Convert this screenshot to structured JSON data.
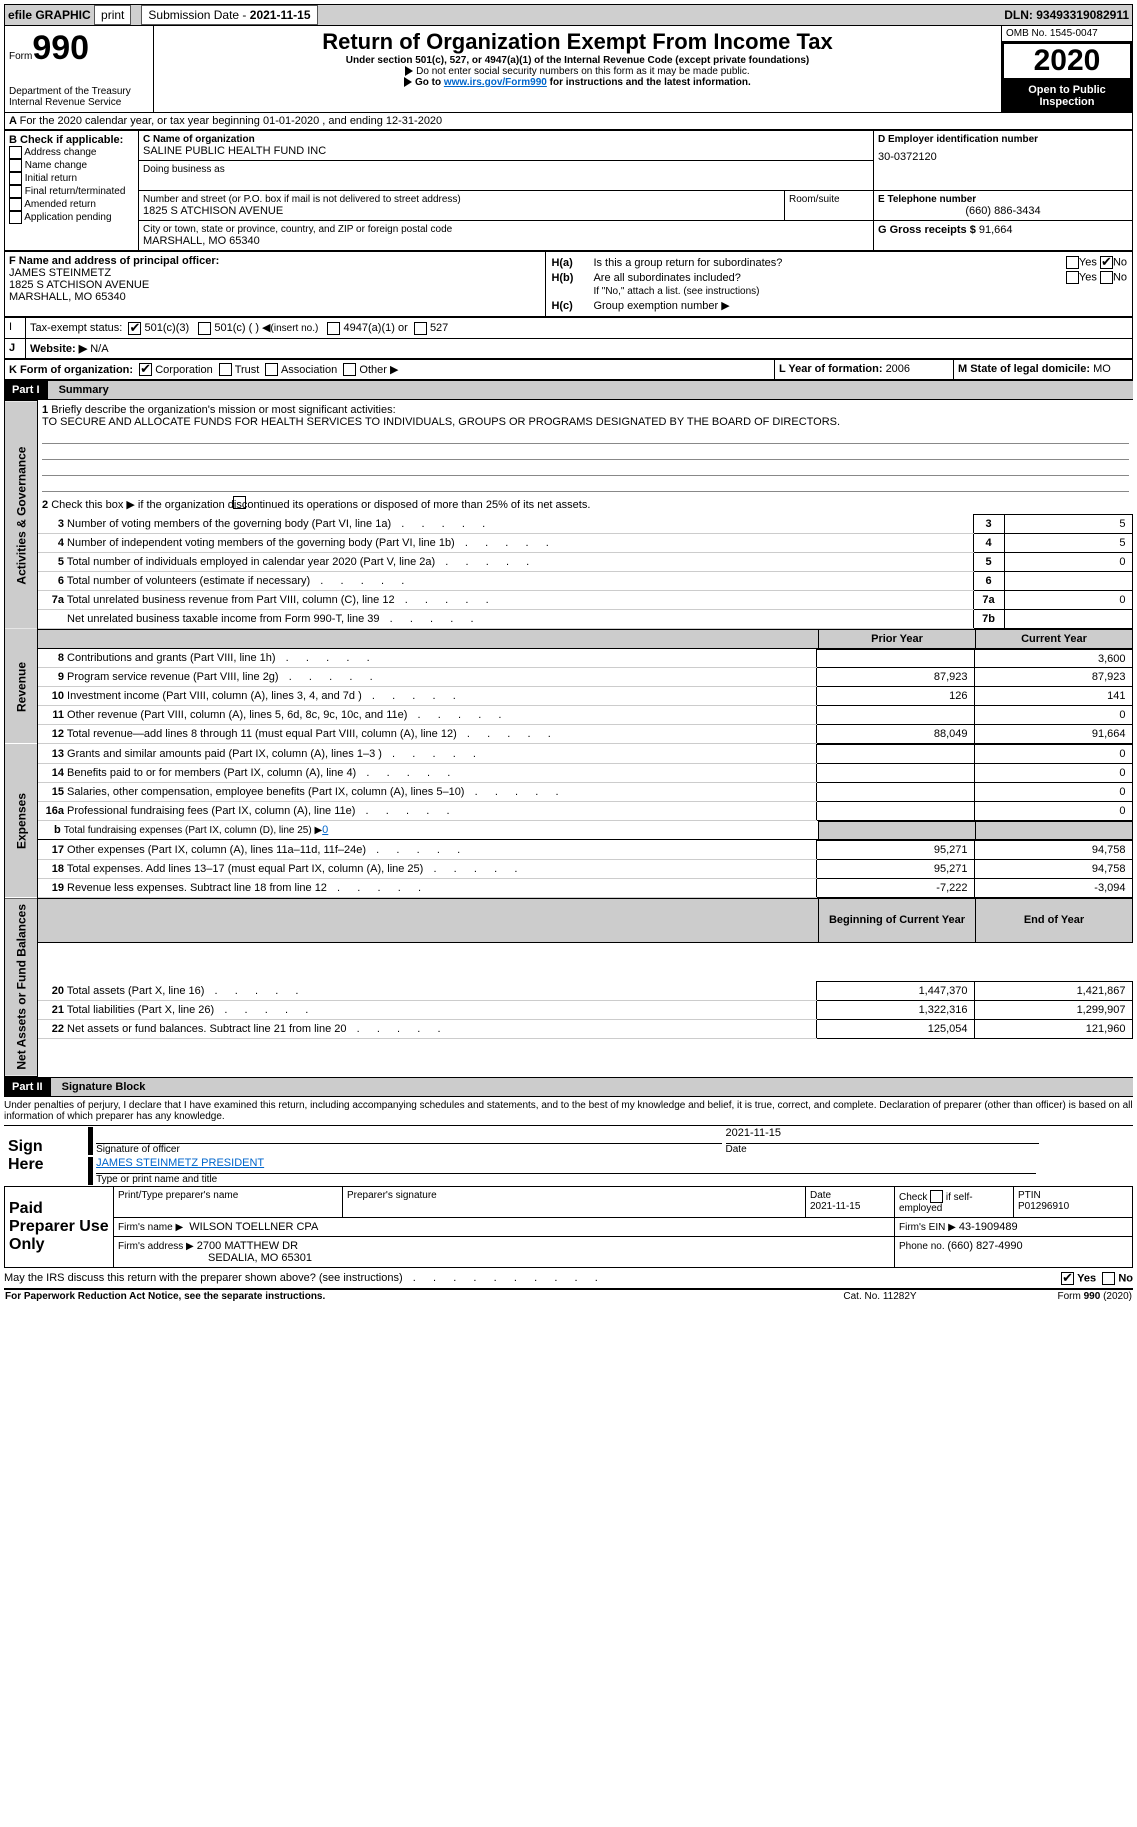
{
  "topbar": {
    "efile": "efile GRAPHIC",
    "print": "print",
    "sub_label": "Submission Date - ",
    "sub_date": "2021-11-15",
    "dln": "DLN: 93493319082911"
  },
  "header": {
    "form_prefix": "Form",
    "form_no": "990",
    "title": "Return of Organization Exempt From Income Tax",
    "subtitle": "Under section 501(c), 527, or 4947(a)(1) of the Internal Revenue Code (except private foundations)",
    "note1": "Do not enter social security numbers on this form as it may be made public.",
    "note2_a": "Go to ",
    "note2_link": "www.irs.gov/Form990",
    "note2_b": " for instructions and the latest information.",
    "dept": "Department of the Treasury\nInternal Revenue Service",
    "omb": "OMB No. 1545-0047",
    "year": "2020",
    "open": "Open to Public Inspection"
  },
  "sectionA": {
    "a_line": "For the 2020 calendar year, or tax year beginning 01-01-2020   , and ending 12-31-2020",
    "b_label": "B Check if applicable:",
    "b_opts": [
      "Address change",
      "Name change",
      "Initial return",
      "Final return/terminated",
      "Amended return",
      "Application pending"
    ],
    "c_label": "C Name of organization",
    "org_name": "SALINE PUBLIC HEALTH FUND INC",
    "dba_label": "Doing business as",
    "addr_label": "Number and street (or P.O. box if mail is not delivered to street address)",
    "room_label": "Room/suite",
    "addr": "1825 S ATCHISON AVENUE",
    "city_label": "City or town, state or province, country, and ZIP or foreign postal code",
    "city": "MARSHALL, MO  65340",
    "d_label": "D Employer identification number",
    "ein": "30-0372120",
    "e_label": "E Telephone number",
    "phone": "(660) 886-3434",
    "g_label": "G Gross receipts $ ",
    "gross": "91,664",
    "f_label": "F  Name and address of principal officer:",
    "officer_name": "JAMES STEINMETZ",
    "officer_addr1": "1825 S ATCHISON AVENUE",
    "officer_addr2": "MARSHALL, MO  65340",
    "ha": "Is this a group return for subordinates?",
    "hb": "Are all subordinates included?",
    "hb_note": "If \"No,\" attach a list. (see instructions)",
    "hc": "Group exemption number ▶",
    "ha_label": "H(a)",
    "hb_label": "H(b)",
    "hc_label": "H(c)",
    "yes": "Yes",
    "no": "No",
    "tax_status_label": "Tax-exempt status:",
    "s1": "501(c)(3)",
    "s2": "501(c) (  )",
    "s2_note": "(insert no.)",
    "s3": "4947(a)(1) or",
    "s4": "527",
    "website_label": "Website: ▶",
    "website": "N/A",
    "k_label": "K Form of organization:",
    "k1": "Corporation",
    "k2": "Trust",
    "k3": "Association",
    "k4": "Other ▶",
    "l_label": "L Year of formation: ",
    "l_val": "2006",
    "m_label": "M State of legal domicile: ",
    "m_val": "MO",
    "i_label": "I",
    "j_label": "J"
  },
  "part1": {
    "label": "Part I",
    "title": "Summary",
    "g_label": "Activities & Governance",
    "r_label": "Revenue",
    "e_label": "Expenses",
    "n_label": "Net Assets or Fund Balances",
    "q1": "Briefly describe the organization's mission or most significant activities:",
    "mission": "TO SECURE AND ALLOCATE FUNDS FOR HEALTH SERVICES TO INDIVIDUALS, GROUPS OR PROGRAMS DESIGNATED BY THE BOARD OF DIRECTORS.",
    "q2": "Check this box ▶        if the organization discontinued its operations or disposed of more than 25% of its net assets.",
    "rows_gov": [
      {
        "n": "3",
        "t": "Number of voting members of the governing body (Part VI, line 1a)",
        "r": "3",
        "v": "5"
      },
      {
        "n": "4",
        "t": "Number of independent voting members of the governing body (Part VI, line 1b)",
        "r": "4",
        "v": "5"
      },
      {
        "n": "5",
        "t": "Total number of individuals employed in calendar year 2020 (Part V, line 2a)",
        "r": "5",
        "v": "0"
      },
      {
        "n": "6",
        "t": "Total number of volunteers (estimate if necessary)",
        "r": "6",
        "v": ""
      },
      {
        "n": "7a",
        "t": "Total unrelated business revenue from Part VIII, column (C), line 12",
        "r": "7a",
        "v": "0"
      },
      {
        "n": "",
        "t": "Net unrelated business taxable income from Form 990-T, line 39",
        "r": "7b",
        "v": ""
      }
    ],
    "hdr_prior": "Prior Year",
    "hdr_curr": "Current Year",
    "rows_rev": [
      {
        "n": "8",
        "t": "Contributions and grants (Part VIII, line 1h)",
        "p": "",
        "c": "3,600"
      },
      {
        "n": "9",
        "t": "Program service revenue (Part VIII, line 2g)",
        "p": "87,923",
        "c": "87,923"
      },
      {
        "n": "10",
        "t": "Investment income (Part VIII, column (A), lines 3, 4, and 7d )",
        "p": "126",
        "c": "141"
      },
      {
        "n": "11",
        "t": "Other revenue (Part VIII, column (A), lines 5, 6d, 8c, 9c, 10c, and 11e)",
        "p": "",
        "c": "0"
      },
      {
        "n": "12",
        "t": "Total revenue—add lines 8 through 11 (must equal Part VIII, column (A), line 12)",
        "p": "88,049",
        "c": "91,664"
      }
    ],
    "rows_exp": [
      {
        "n": "13",
        "t": "Grants and similar amounts paid (Part IX, column (A), lines 1–3 )",
        "p": "",
        "c": "0"
      },
      {
        "n": "14",
        "t": "Benefits paid to or for members (Part IX, column (A), line 4)",
        "p": "",
        "c": "0"
      },
      {
        "n": "15",
        "t": "Salaries, other compensation, employee benefits (Part IX, column (A), lines 5–10)",
        "p": "",
        "c": "0"
      },
      {
        "n": "16a",
        "t": "Professional fundraising fees (Part IX, column (A), line 11e)",
        "p": "",
        "c": "0"
      }
    ],
    "row_b": {
      "n": "b",
      "t": "Total fundraising expenses (Part IX, column (D), line 25) ▶",
      "v": "0"
    },
    "rows_exp2": [
      {
        "n": "17",
        "t": "Other expenses (Part IX, column (A), lines 11a–11d, 11f–24e)",
        "p": "95,271",
        "c": "94,758"
      },
      {
        "n": "18",
        "t": "Total expenses. Add lines 13–17 (must equal Part IX, column (A), line 25)",
        "p": "95,271",
        "c": "94,758"
      },
      {
        "n": "19",
        "t": "Revenue less expenses. Subtract line 18 from line 12",
        "p": "-7,222",
        "c": "-3,094"
      }
    ],
    "hdr_beg": "Beginning of Current Year",
    "hdr_end": "End of Year",
    "rows_net": [
      {
        "n": "20",
        "t": "Total assets (Part X, line 16)",
        "p": "1,447,370",
        "c": "1,421,867"
      },
      {
        "n": "21",
        "t": "Total liabilities (Part X, line 26)",
        "p": "1,322,316",
        "c": "1,299,907"
      },
      {
        "n": "22",
        "t": "Net assets or fund balances. Subtract line 21 from line 20",
        "p": "125,054",
        "c": "121,960"
      }
    ]
  },
  "part2": {
    "label": "Part II",
    "title": "Signature Block",
    "decl": "Under penalties of perjury, I declare that I have examined this return, including accompanying schedules and statements, and to the best of my knowledge and belief, it is true, correct, and complete. Declaration of preparer (other than officer) is based on all information of which preparer has any knowledge.",
    "sign_here": "Sign Here",
    "sig_officer": "Signature of officer",
    "sig_date": "2021-11-15",
    "date_lbl": "Date",
    "officer_line": "JAMES STEINMETZ  PRESIDENT",
    "name_title": "Type or print name and title",
    "paid": "Paid Preparer Use Only",
    "prep_name_lbl": "Print/Type preparer's name",
    "prep_sig_lbl": "Preparer's signature",
    "prep_date_lbl": "Date",
    "prep_date": "2021-11-15",
    "self_lbl": "Check        if self-employed",
    "ptin_lbl": "PTIN",
    "ptin": "P01296910",
    "firm_name_lbl": "Firm's name    ▶",
    "firm_name": "WILSON TOELLNER CPA",
    "firm_ein_lbl": "Firm's EIN ▶",
    "firm_ein": "43-1909489",
    "firm_addr_lbl": "Firm's address ▶",
    "firm_addr1": "2700 MATTHEW DR",
    "firm_addr2": "SEDALIA, MO  65301",
    "phone_lbl": "Phone no. ",
    "phone": "(660) 827-4990",
    "discuss": "May the IRS discuss this return with the preparer shown above? (see instructions)",
    "pra": "For Paperwork Reduction Act Notice, see the separate instructions.",
    "cat": "Cat. No. 11282Y",
    "formver": "Form 990 (2020)"
  }
}
